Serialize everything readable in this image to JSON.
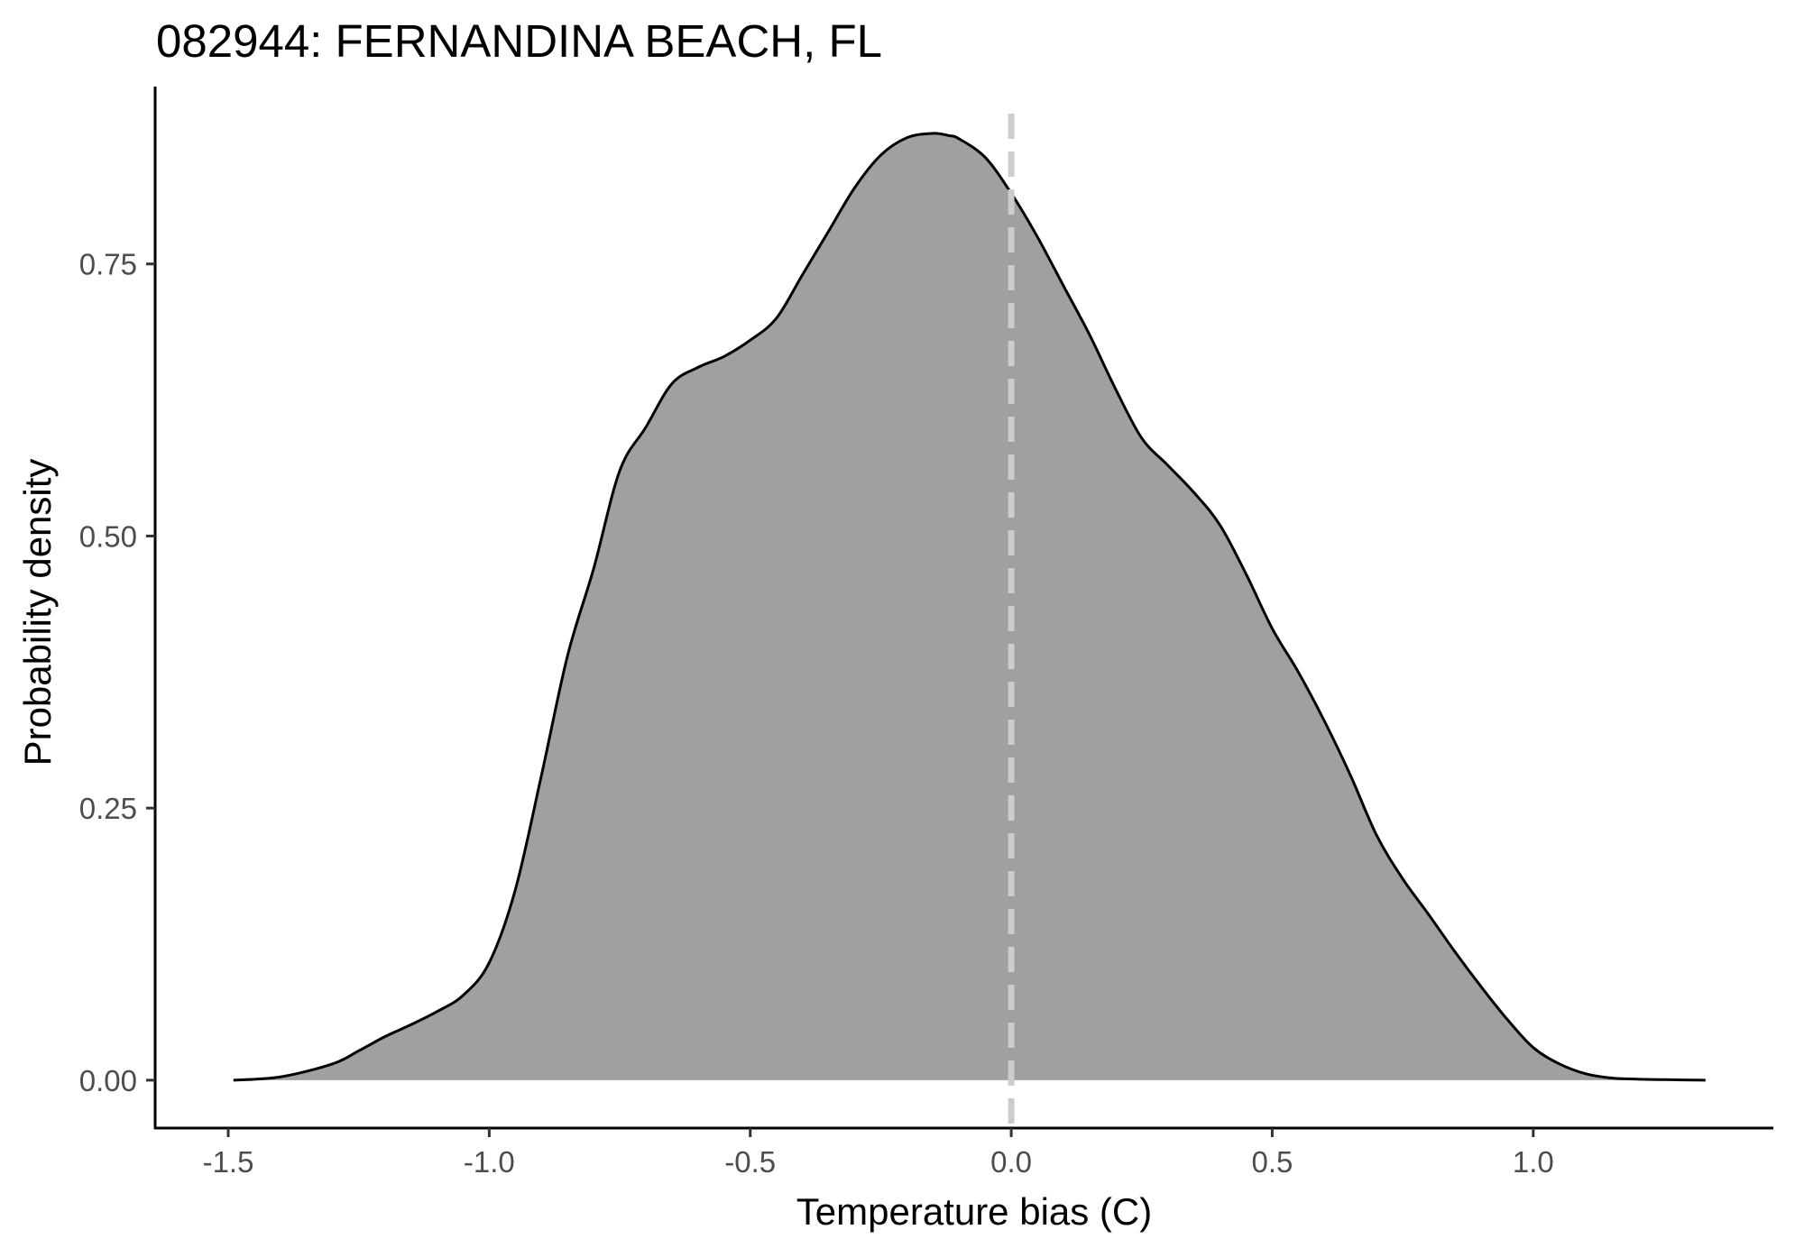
{
  "chart_data": {
    "type": "area",
    "title": "082944: FERNANDINA BEACH, FL",
    "xlabel": "Temperature bias (C)",
    "ylabel": "Probability density",
    "xlim": [
      -1.64,
      1.46
    ],
    "ylim": [
      -0.044,
      0.913
    ],
    "x_ticks": [
      -1.5,
      -1.0,
      -0.5,
      0.0,
      0.5,
      1.0
    ],
    "x_tick_labels": [
      "-1.5",
      "-1.0",
      "-0.5",
      "0.0",
      "0.5",
      "1.0"
    ],
    "y_ticks": [
      0.0,
      0.25,
      0.5,
      0.75
    ],
    "y_tick_labels": [
      "0.00",
      "0.25",
      "0.50",
      "0.75"
    ],
    "grid": false,
    "reference_line": {
      "x": 0.0,
      "style": "dashed",
      "color": "#cccccc"
    },
    "fill_color": "#a0a0a0",
    "line_color": "#000000",
    "series": [
      {
        "x": [
          -1.49,
          -1.4,
          -1.3,
          -1.25,
          -1.2,
          -1.15,
          -1.1,
          -1.05,
          -1.0,
          -0.95,
          -0.9,
          -0.85,
          -0.8,
          -0.75,
          -0.7,
          -0.65,
          -0.6,
          -0.55,
          -0.5,
          -0.45,
          -0.4,
          -0.35,
          -0.3,
          -0.25,
          -0.2,
          -0.15,
          -0.12,
          -0.1,
          -0.05,
          0.0,
          0.05,
          0.1,
          0.15,
          0.2,
          0.25,
          0.3,
          0.35,
          0.4,
          0.45,
          0.5,
          0.55,
          0.6,
          0.65,
          0.7,
          0.75,
          0.8,
          0.85,
          0.9,
          0.95,
          1.0,
          1.05,
          1.1,
          1.15,
          1.2,
          1.25,
          1.33
        ],
        "y": [
          0.0,
          0.003,
          0.015,
          0.027,
          0.04,
          0.051,
          0.063,
          0.078,
          0.108,
          0.175,
          0.28,
          0.39,
          0.47,
          0.56,
          0.6,
          0.64,
          0.655,
          0.665,
          0.68,
          0.7,
          0.74,
          0.78,
          0.82,
          0.85,
          0.866,
          0.87,
          0.868,
          0.865,
          0.848,
          0.815,
          0.775,
          0.73,
          0.685,
          0.635,
          0.59,
          0.565,
          0.54,
          0.51,
          0.465,
          0.415,
          0.375,
          0.33,
          0.28,
          0.225,
          0.185,
          0.152,
          0.118,
          0.086,
          0.056,
          0.03,
          0.015,
          0.006,
          0.002,
          0.001,
          0.0005,
          0.0
        ]
      }
    ]
  }
}
